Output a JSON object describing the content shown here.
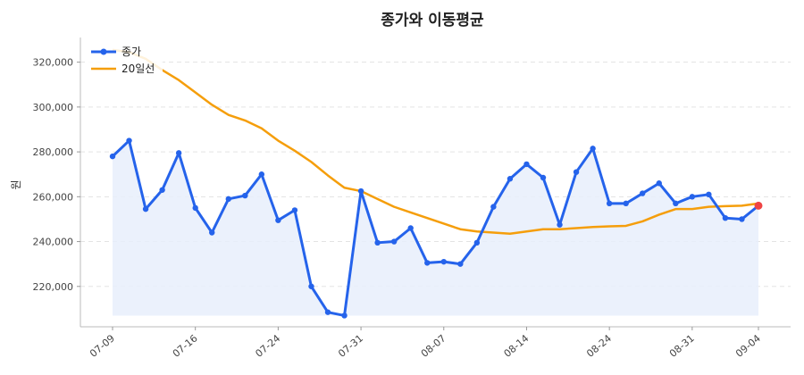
{
  "chart_data": {
    "type": "line",
    "title": "종가와 이동평균",
    "ylabel": "원",
    "xlabel": "",
    "ylim": [
      202000,
      331000
    ],
    "y_ticks": [
      220000,
      240000,
      260000,
      280000,
      300000,
      320000
    ],
    "y_tick_labels": [
      "220,000",
      "240,000",
      "260,000",
      "280,000",
      "300,000",
      "320,000"
    ],
    "x_tick_labels": [
      "07-09",
      "07-16",
      "07-24",
      "07-31",
      "08-07",
      "08-14",
      "08-24",
      "08-31",
      "09-04"
    ],
    "x_tick_indices": [
      0,
      5,
      10,
      15,
      20,
      25,
      30,
      35,
      39
    ],
    "grid": true,
    "legend_position": "top-left",
    "colors": {
      "close": "#2563eb",
      "ma": "#f59e0b",
      "fill": "#e8eefb",
      "last_point": "#ef4444"
    },
    "series": [
      {
        "name": "종가",
        "values": [
          278000,
          285000,
          254500,
          263000,
          279500,
          255000,
          244000,
          259000,
          260500,
          270000,
          249500,
          254000,
          220000,
          208500,
          207000,
          262500,
          239500,
          240000,
          246000,
          230500,
          231000,
          230000,
          239500,
          255500,
          268000,
          274500,
          268500,
          247500,
          271000,
          281500,
          257000,
          257000,
          261500,
          266000,
          257000,
          260000,
          261000,
          250500,
          250000,
          256000
        ]
      },
      {
        "name": "20일선",
        "values": [
          325500,
          324500,
          321500,
          316500,
          312000,
          306500,
          301000,
          296500,
          294000,
          290500,
          285000,
          280500,
          275500,
          269500,
          264000,
          262500,
          259000,
          255500,
          253000,
          250500,
          248000,
          245500,
          244500,
          244000,
          243500,
          244500,
          245500,
          245500,
          246000,
          246500,
          246800,
          247000,
          249000,
          252000,
          254500,
          254500,
          255500,
          255800,
          256000,
          257000
        ]
      }
    ]
  }
}
